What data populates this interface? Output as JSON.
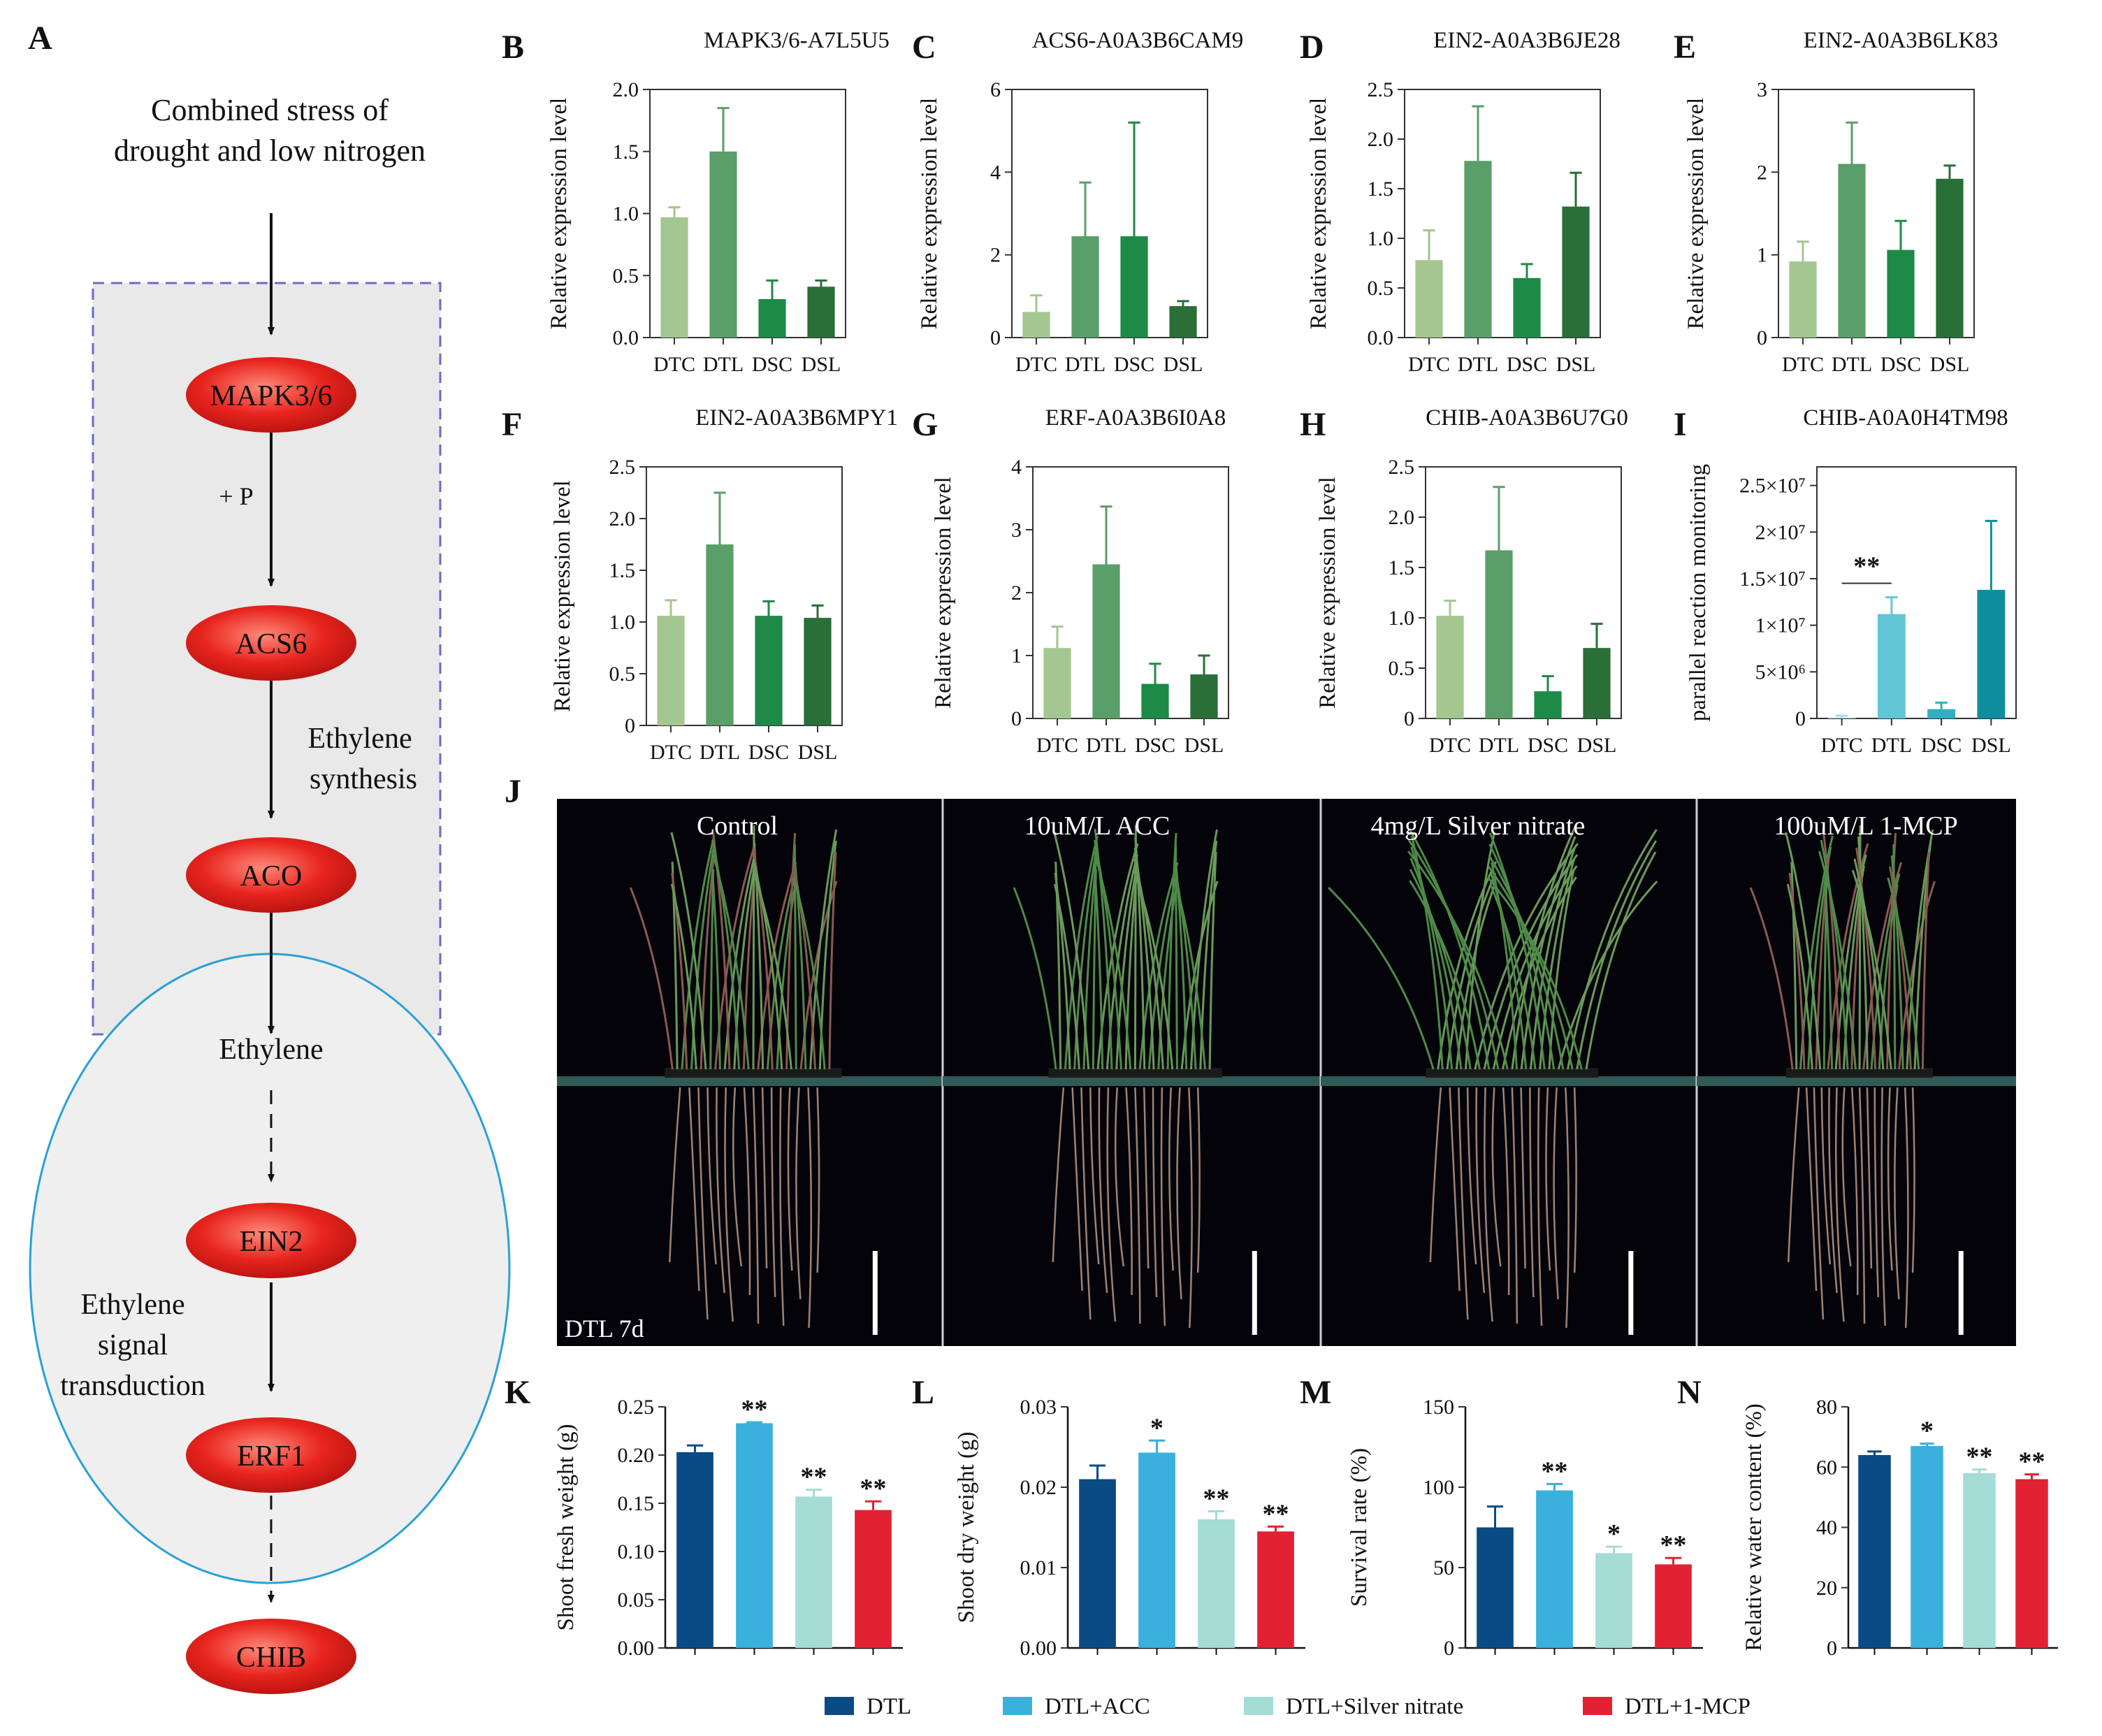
{
  "panel_a": {
    "label": "A",
    "stress_line1": "Combined stress of",
    "stress_line2": "drought and low nitrogen",
    "nodes": [
      "MAPK3/6",
      "ACS6",
      "ACO",
      "Ethylene",
      "EIN2",
      "ERF1",
      "CHIB"
    ],
    "phospho": "+ P",
    "synthesis_line1": "Ethylene",
    "synthesis_line2": "synthesis",
    "signal_line1": "Ethylene",
    "signal_line2": "signal",
    "signal_line3": "transduction",
    "colors": {
      "node": "#e8241e",
      "box_border": "#6a6ac8",
      "ellipse_border": "#2aa0d6",
      "fill": "#e9e9e9"
    }
  },
  "expression_colors": {
    "DTC": "#a4c690",
    "DTL": "#5a9e6a",
    "DSC": "#1e8a48",
    "DSL": "#2a6e38"
  },
  "prm_colors": {
    "DTC": "#a8dde8",
    "DTL": "#62c6d6",
    "DSC": "#32aec4",
    "DSL": "#0e8e9c"
  },
  "treatment_colors": {
    "DTL": "#0a4a85",
    "DTL+ACC": "#3ab0dc",
    "DTL+Silver nitrate": "#a4dcd6",
    "DTL+1-MCP": "#e22233"
  },
  "photo": {
    "label": "J",
    "captions": [
      "Control",
      "10uM/L ACC",
      "4mg/L Silver nitrate",
      "100uM/L 1-MCP"
    ],
    "stage": "DTL 7d"
  },
  "legend": {
    "items": [
      "DTL",
      "DTL+ACC",
      "DTL+Silver nitrate",
      "DTL+1-MCP"
    ]
  },
  "chart_data": [
    {
      "panel": "B",
      "type": "bar",
      "title": "MAPK3/6-A7L5U5",
      "ylabel": "Relative expression level",
      "categories": [
        "DTC",
        "DTL",
        "DSC",
        "DSL"
      ],
      "values": [
        0.97,
        1.5,
        0.31,
        0.41
      ],
      "errors": [
        0.08,
        0.35,
        0.15,
        0.05
      ],
      "ylim": [
        0,
        2.0
      ],
      "ticks": [
        "0.0",
        "0.5",
        "1.0",
        "1.5",
        "2.0"
      ]
    },
    {
      "panel": "C",
      "type": "bar",
      "title": "ACS6-A0A3B6CAM9",
      "ylabel": "Relative expression level",
      "categories": [
        "DTC",
        "DTL",
        "DSC",
        "DSL"
      ],
      "values": [
        0.62,
        2.45,
        2.45,
        0.76
      ],
      "errors": [
        0.4,
        1.3,
        2.75,
        0.12
      ],
      "ylim": [
        0,
        6
      ],
      "ticks": [
        "0",
        "2",
        "4",
        "6"
      ]
    },
    {
      "panel": "D",
      "type": "bar",
      "title": "EIN2-A0A3B6JE28",
      "ylabel": "Relative expression level",
      "categories": [
        "DTC",
        "DTL",
        "DSC",
        "DSL"
      ],
      "values": [
        0.78,
        1.78,
        0.6,
        1.32
      ],
      "errors": [
        0.3,
        0.55,
        0.14,
        0.34
      ],
      "ylim": [
        0,
        2.5
      ],
      "ticks": [
        "0.0",
        "0.5",
        "1.0",
        "1.5",
        "2.0",
        "2.5"
      ]
    },
    {
      "panel": "E",
      "type": "bar",
      "title": "EIN2-A0A3B6LK83",
      "ylabel": "Relative expression level",
      "categories": [
        "DTC",
        "DTL",
        "DSC",
        "DSL"
      ],
      "values": [
        0.92,
        2.1,
        1.06,
        1.92
      ],
      "errors": [
        0.24,
        0.5,
        0.35,
        0.16
      ],
      "ylim": [
        0,
        3
      ],
      "ticks": [
        "0",
        "1",
        "2",
        "3"
      ]
    },
    {
      "panel": "F",
      "type": "bar",
      "title": "EIN2-A0A3B6MPY1",
      "ylabel": "Relative expression level",
      "categories": [
        "DTC",
        "DTL",
        "DSC",
        "DSL"
      ],
      "values": [
        1.06,
        1.75,
        1.06,
        1.04
      ],
      "errors": [
        0.15,
        0.5,
        0.14,
        0.12
      ],
      "ylim": [
        0,
        2.5
      ],
      "ticks": [
        "0",
        "0.5",
        "1.0",
        "1.5",
        "2.0",
        "2.5"
      ]
    },
    {
      "panel": "G",
      "type": "bar",
      "title": "ERF-A0A3B6I0A8",
      "ylabel": "Relative expression level",
      "categories": [
        "DTC",
        "DTL",
        "DSC",
        "DSL"
      ],
      "values": [
        1.12,
        2.45,
        0.55,
        0.7
      ],
      "errors": [
        0.34,
        0.92,
        0.32,
        0.3
      ],
      "ylim": [
        0,
        4
      ],
      "ticks": [
        "0",
        "1",
        "2",
        "3",
        "4"
      ]
    },
    {
      "panel": "H",
      "type": "bar",
      "title": "CHIB-A0A3B6U7G0",
      "ylabel": "Relative expression level",
      "categories": [
        "DTC",
        "DTL",
        "DSC",
        "DSL"
      ],
      "values": [
        1.02,
        1.67,
        0.27,
        0.7
      ],
      "errors": [
        0.15,
        0.63,
        0.15,
        0.24
      ],
      "ylim": [
        0,
        2.5
      ],
      "ticks": [
        "0",
        "0.5",
        "1.0",
        "1.5",
        "2.0",
        "2.5"
      ]
    },
    {
      "panel": "I",
      "type": "bar",
      "title": "CHIB-A0A0H4TM98",
      "ylabel": "parallel reaction monitoring",
      "categories": [
        "DTC",
        "DTL",
        "DSC",
        "DSL"
      ],
      "values": [
        100000,
        11200000,
        1000000,
        13800000
      ],
      "errors": [
        200000,
        1800000,
        700000,
        7400000
      ],
      "ylim": [
        0,
        27000000
      ],
      "tick_values": [
        0,
        5000000,
        10000000,
        15000000,
        20000000,
        25000000
      ],
      "ticks": [
        "0",
        "5×10⁶",
        "1×10⁷",
        "1.5×10⁷",
        "2×10⁷",
        "2.5×10⁷"
      ],
      "significance": {
        "from": "DTC",
        "to": "DTL",
        "label": "**"
      }
    },
    {
      "panel": "K",
      "type": "bar",
      "ylabel": "Shoot fresh weight (g)",
      "categories": [
        "DTL",
        "DTL+ACC",
        "DTL+Silver nitrate",
        "DTL+1-MCP"
      ],
      "values": [
        0.203,
        0.233,
        0.157,
        0.143
      ],
      "errors": [
        0.007,
        0.001,
        0.007,
        0.009
      ],
      "marks": [
        "",
        "**",
        "**",
        "**"
      ],
      "ylim": [
        0,
        0.25
      ],
      "ticks": [
        "0.00",
        "0.05",
        "0.10",
        "0.15",
        "0.20",
        "0.25"
      ]
    },
    {
      "panel": "L",
      "type": "bar",
      "ylabel": "Shoot dry weight (g)",
      "categories": [
        "DTL",
        "DTL+ACC",
        "DTL+Silver nitrate",
        "DTL+1-MCP"
      ],
      "values": [
        0.021,
        0.0243,
        0.016,
        0.0145
      ],
      "errors": [
        0.0017,
        0.0015,
        0.001,
        0.0006
      ],
      "marks": [
        "",
        "*",
        "**",
        "**"
      ],
      "ylim": [
        0,
        0.03
      ],
      "ticks": [
        "0.00",
        "0.01",
        "0.02",
        "0.03"
      ]
    },
    {
      "panel": "M",
      "type": "bar",
      "ylabel": "Survival rate (%)",
      "categories": [
        "DTL",
        "DTL+ACC",
        "DTL+Silver nitrate",
        "DTL+1-MCP"
      ],
      "values": [
        75,
        98,
        59,
        52
      ],
      "errors": [
        13,
        4,
        4,
        4
      ],
      "marks": [
        "",
        "**",
        "*",
        "**"
      ],
      "ylim": [
        0,
        150
      ],
      "ticks": [
        "0",
        "50",
        "100",
        "150"
      ]
    },
    {
      "panel": "N",
      "type": "bar",
      "ylabel": "Relative water content (%)",
      "categories": [
        "DTL",
        "DTL+ACC",
        "DTL+Silver nitrate",
        "DTL+1-MCP"
      ],
      "values": [
        64,
        67,
        58,
        56
      ],
      "errors": [
        1.2,
        0.8,
        1.2,
        1.6
      ],
      "marks": [
        "",
        "*",
        "**",
        "**"
      ],
      "ylim": [
        0,
        80
      ],
      "ticks": [
        "0",
        "20",
        "40",
        "60",
        "80"
      ]
    }
  ]
}
